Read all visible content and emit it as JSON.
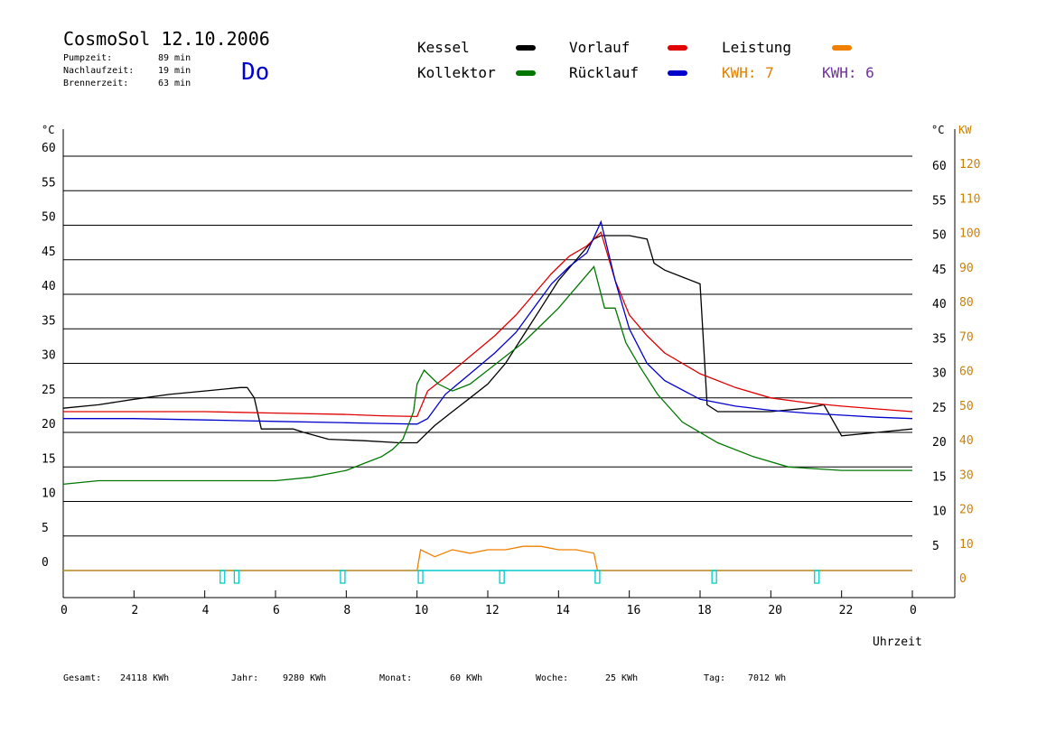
{
  "header": {
    "title": "CosmoSol 12.10.2006",
    "stats": [
      {
        "label": "Pumpzeit:",
        "value": "89 min"
      },
      {
        "label": "Nachlaufzeit:",
        "value": "19 min"
      },
      {
        "label": "Brennerzeit:",
        "value": "63 min"
      }
    ],
    "weekday": "Do"
  },
  "legend": {
    "items": [
      {
        "label": "Kessel",
        "color": "#000000"
      },
      {
        "label": "Vorlauf",
        "color": "#e00000"
      },
      {
        "label": "Leistung",
        "color": "#f08000"
      },
      {
        "label": "Kollektor",
        "color": "#007700"
      },
      {
        "label": "Rücklauf",
        "color": "#0000cc"
      }
    ],
    "kwh": [
      {
        "label": "KWH: 7",
        "color": "#e08000"
      },
      {
        "label": "KWH: 6",
        "color": "#7030a0"
      }
    ]
  },
  "footer": [
    {
      "label": "Gesamt:",
      "value": "24118 KWh"
    },
    {
      "label": "Jahr:",
      "value": "9280 KWh"
    },
    {
      "label": "Monat:",
      "value": "60 KWh"
    },
    {
      "label": "Woche:",
      "value": "25 KWh"
    },
    {
      "label": "Tag:",
      "value": "7012 Wh"
    }
  ],
  "chart_data": {
    "type": "line",
    "xlabel": "Uhrzeit",
    "ylabel_left": "°C",
    "ylabel_right": "°C",
    "ylabel_right2": "KW",
    "xlim": [
      0,
      24
    ],
    "ylim": [
      0,
      60
    ],
    "ylim_right2": [
      0,
      120
    ],
    "x_ticks": [
      "0",
      "2",
      "4",
      "6",
      "8",
      "10",
      "12",
      "14",
      "16",
      "18",
      "20",
      "22",
      "0"
    ],
    "y_ticks": [
      0,
      5,
      10,
      15,
      20,
      25,
      30,
      35,
      40,
      45,
      50,
      55,
      60
    ],
    "y_ticks_right2": [
      0,
      10,
      20,
      30,
      40,
      50,
      60,
      70,
      80,
      90,
      100,
      110,
      120
    ],
    "grid": true,
    "series": [
      {
        "name": "Kessel",
        "color": "#000000",
        "x": [
          0,
          1,
          2,
          3,
          4,
          5,
          5.2,
          5.4,
          5.6,
          6.5,
          6.8,
          7.5,
          8.5,
          9.5,
          10.0,
          10.2,
          10.5,
          11,
          11.5,
          12,
          12.5,
          13,
          13.5,
          14,
          14.5,
          15,
          15.2,
          16,
          16.5,
          16.7,
          17,
          17.5,
          18,
          18.2,
          18.5,
          19,
          20,
          21,
          21.5,
          22,
          23,
          24
        ],
        "y": [
          23.5,
          24,
          24.8,
          25.5,
          26,
          26.5,
          26.5,
          25,
          20.5,
          20.5,
          20,
          19,
          18.8,
          18.5,
          18.5,
          19.5,
          21,
          23,
          25,
          27,
          30,
          34,
          38,
          42,
          45,
          48,
          48.5,
          48.5,
          48,
          44.5,
          43.5,
          42.5,
          41.5,
          24,
          23,
          23,
          23,
          23.5,
          24,
          19.5,
          20,
          20.5
        ]
      },
      {
        "name": "Vorlauf",
        "color": "#e00000",
        "x": [
          0,
          2,
          4,
          6,
          8,
          9,
          10.0,
          10.3,
          10.8,
          11.5,
          12.2,
          12.8,
          13.3,
          13.8,
          14.3,
          14.8,
          15.2,
          15.6,
          16,
          16.5,
          17,
          18,
          19,
          20,
          21,
          22,
          23,
          24
        ],
        "y": [
          23,
          23,
          23,
          22.8,
          22.6,
          22.4,
          22.3,
          26,
          28,
          31,
          34,
          37,
          40,
          43,
          45.5,
          47,
          49,
          42,
          37,
          34,
          31.5,
          28.5,
          26.5,
          25,
          24.3,
          23.8,
          23.4,
          23
        ]
      },
      {
        "name": "Rücklauf",
        "color": "#0000cc",
        "x": [
          0,
          2,
          4,
          6,
          8,
          9,
          10.0,
          10.3,
          10.8,
          11.5,
          12.2,
          12.8,
          13.3,
          13.8,
          14.3,
          14.8,
          15.2,
          15.6,
          16,
          16.5,
          17,
          18,
          19,
          20,
          21,
          22,
          23,
          24
        ],
        "y": [
          22,
          22,
          21.8,
          21.6,
          21.4,
          21.3,
          21.2,
          22,
          25.5,
          28.5,
          31.5,
          34.5,
          38,
          41.5,
          44,
          46,
          50.5,
          42,
          35,
          30,
          27.5,
          24.8,
          23.8,
          23.2,
          22.8,
          22.5,
          22.2,
          22
        ]
      },
      {
        "name": "Kollektor",
        "color": "#007700",
        "x": [
          0,
          1,
          2,
          3,
          4,
          5,
          6,
          7,
          7.5,
          8,
          8.5,
          9,
          9.3,
          9.6,
          9.9,
          10.0,
          10.2,
          10.6,
          11,
          11.5,
          12,
          12.5,
          13,
          13.5,
          14,
          14.5,
          15,
          15.3,
          15.6,
          15.9,
          16.3,
          16.8,
          17.5,
          18.5,
          19.5,
          20.5,
          22,
          24
        ],
        "y": [
          12.5,
          13,
          13,
          13,
          13,
          13,
          13,
          13.5,
          14,
          14.5,
          15.5,
          16.5,
          17.5,
          19,
          23,
          27,
          29,
          27,
          26,
          27,
          29,
          31,
          33,
          35.5,
          38,
          41,
          44,
          38,
          38,
          33,
          29.5,
          25.5,
          21.5,
          18.5,
          16.5,
          15,
          14.5,
          14.5
        ]
      },
      {
        "name": "Leistung",
        "color": "#f08000",
        "axis": "right2",
        "x": [
          0,
          10.0,
          10.1,
          10.5,
          11,
          11.5,
          12,
          12.5,
          13,
          13.5,
          14,
          14.5,
          15.0,
          15.1,
          24
        ],
        "y": [
          0,
          0,
          6,
          4,
          6,
          5,
          6,
          6,
          7,
          7,
          6,
          6,
          5,
          0,
          0
        ]
      }
    ],
    "markers_x": [
      4.5,
      4.9,
      7.9,
      10.1,
      12.4,
      15.1,
      18.4,
      21.3
    ]
  }
}
